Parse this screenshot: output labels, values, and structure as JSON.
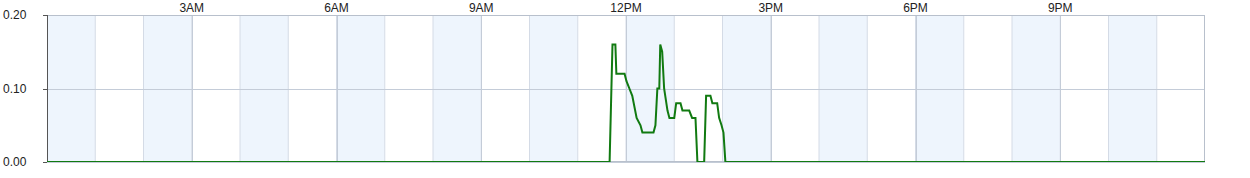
{
  "chart_data": {
    "type": "line",
    "x": [
      0,
      11.66,
      11.72,
      11.78,
      11.8,
      11.97,
      12.01,
      12.07,
      12.13,
      12.22,
      12.3,
      12.34,
      12.57,
      12.61,
      12.65,
      12.69,
      12.71,
      12.75,
      12.79,
      12.86,
      12.9,
      13.0,
      13.04,
      13.13,
      13.17,
      13.31,
      13.37,
      13.44,
      13.48,
      13.62,
      13.66,
      13.75,
      13.79,
      13.89,
      13.93,
      13.98,
      14.02,
      14.06,
      24
    ],
    "values": [
      0,
      0,
      0.16,
      0.16,
      0.12,
      0.12,
      0.11,
      0.1,
      0.09,
      0.06,
      0.05,
      0.04,
      0.04,
      0.05,
      0.1,
      0.1,
      0.16,
      0.15,
      0.1,
      0.07,
      0.06,
      0.06,
      0.08,
      0.08,
      0.07,
      0.07,
      0.06,
      0.06,
      0,
      0,
      0.09,
      0.09,
      0.08,
      0.08,
      0.06,
      0.05,
      0.04,
      0,
      0
    ],
    "color": "#117a11",
    "xlim": [
      0,
      24
    ],
    "xticks": [
      {
        "value": 3,
        "label": "3AM"
      },
      {
        "value": 6,
        "label": "6AM"
      },
      {
        "value": 9,
        "label": "9AM"
      },
      {
        "value": 12,
        "label": "12PM"
      },
      {
        "value": 15,
        "label": "3PM"
      },
      {
        "value": 18,
        "label": "6PM"
      },
      {
        "value": 21,
        "label": "9PM"
      }
    ],
    "ylim": [
      0,
      0.2
    ],
    "yticks": [
      {
        "value": 0,
        "label": "0.00"
      },
      {
        "value": 0.1,
        "label": "0.10"
      },
      {
        "value": 0.2,
        "label": "0.20"
      }
    ],
    "grid": true
  }
}
